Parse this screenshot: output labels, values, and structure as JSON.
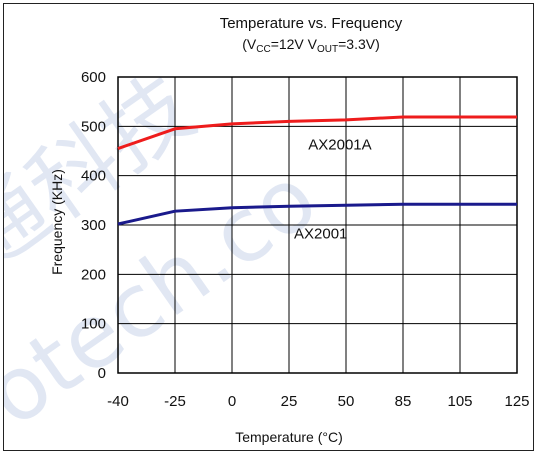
{
  "chart_data": {
    "type": "line",
    "title": "Temperature vs. Frequency",
    "subtitle": {
      "a": "(V",
      "a_sub": "CC",
      "b": "=12V  V",
      "b_sub": "OUT",
      "c": "=3.3V)"
    },
    "xlabel": "Temperature (°C)",
    "ylabel": "Frequency (KHz)",
    "categories": [
      "-40",
      "-25",
      "0",
      "25",
      "50",
      "85",
      "105",
      "125"
    ],
    "y_ticks": [
      "600",
      "500",
      "400",
      "300",
      "200",
      "100",
      "0"
    ],
    "ylim": [
      0,
      600
    ],
    "grid": true,
    "series": [
      {
        "name": "AX2001A",
        "color": "#ee1c1c",
        "values": [
          455,
          495,
          505,
          510,
          513,
          519,
          519,
          519
        ]
      },
      {
        "name": "AX2001",
        "color": "#1a1a8c",
        "values": [
          302,
          328,
          335,
          338,
          340,
          342,
          342,
          342
        ]
      }
    ],
    "watermark": [
      "通科技",
      "otech.co"
    ]
  }
}
